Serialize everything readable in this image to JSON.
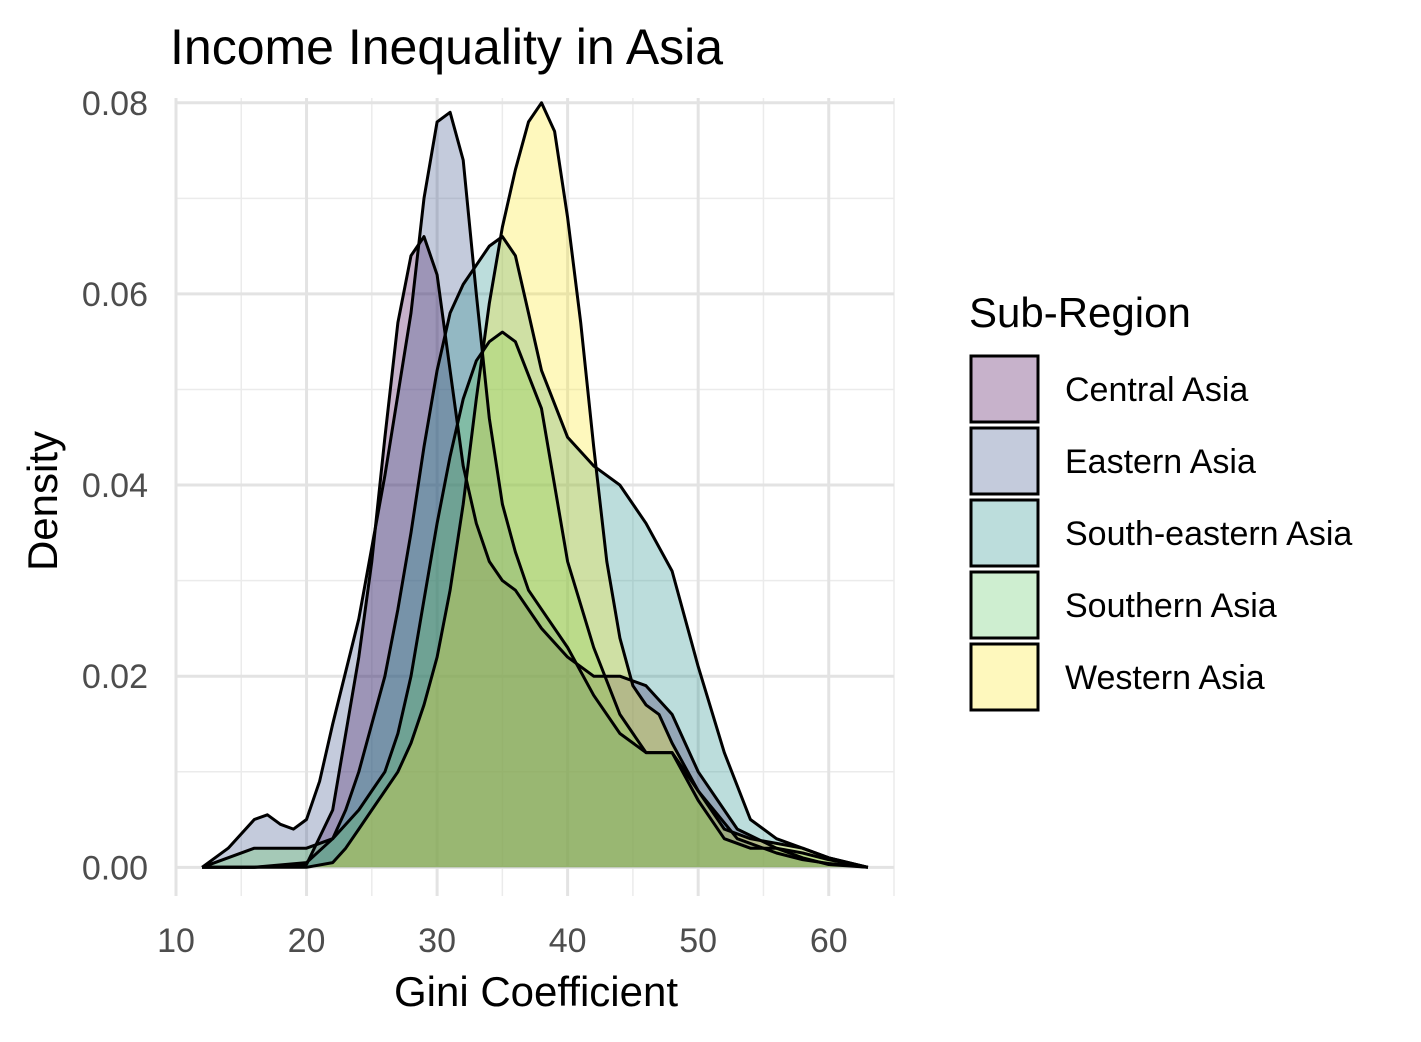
{
  "chart_data": {
    "type": "area",
    "title": "Income Inequality in Asia",
    "xlabel": "Gini Coefficient",
    "ylabel": "Density",
    "xlim": [
      10,
      65
    ],
    "ylim": [
      -0.003,
      0.0805
    ],
    "xticks": [
      10,
      20,
      30,
      40,
      50,
      60
    ],
    "yticks": [
      0.0,
      0.02,
      0.04,
      0.06,
      0.08
    ],
    "xtick_labels": [
      "10",
      "20",
      "30",
      "40",
      "50",
      "60"
    ],
    "ytick_labels": [
      "0.00",
      "0.02",
      "0.04",
      "0.06",
      "0.08"
    ],
    "grid": true,
    "legend": {
      "title": "Sub-Region",
      "position": "right"
    },
    "series": [
      {
        "name": "Central Asia",
        "color": "#440154",
        "x": [
          12,
          16,
          20,
          22,
          24,
          25,
          26,
          27,
          28,
          29,
          30,
          31,
          32,
          33,
          34,
          35,
          36,
          38,
          40,
          42,
          44,
          46,
          48,
          50,
          53,
          56,
          58,
          60,
          63
        ],
        "y": [
          0.0,
          0.0,
          0.0003,
          0.006,
          0.022,
          0.032,
          0.045,
          0.057,
          0.064,
          0.066,
          0.062,
          0.052,
          0.042,
          0.036,
          0.032,
          0.03,
          0.029,
          0.025,
          0.022,
          0.02,
          0.02,
          0.019,
          0.016,
          0.01,
          0.004,
          0.002,
          0.001,
          0.0003,
          0.0
        ]
      },
      {
        "name": "Eastern Asia",
        "color": "#3B528B",
        "x": [
          12,
          14,
          16,
          17,
          18,
          19,
          20,
          21,
          22,
          24,
          26,
          28,
          29,
          30,
          31,
          32,
          33,
          34,
          35,
          36,
          37,
          38,
          40,
          42,
          44,
          46,
          48,
          50,
          53,
          56,
          58,
          60,
          63
        ],
        "y": [
          0.0,
          0.002,
          0.005,
          0.0055,
          0.0045,
          0.004,
          0.005,
          0.009,
          0.015,
          0.026,
          0.041,
          0.058,
          0.07,
          0.078,
          0.079,
          0.074,
          0.06,
          0.047,
          0.038,
          0.033,
          0.029,
          0.027,
          0.023,
          0.018,
          0.014,
          0.012,
          0.012,
          0.008,
          0.003,
          0.0015,
          0.0008,
          0.0004,
          0.0
        ]
      },
      {
        "name": "South-eastern Asia",
        "color": "#21908C",
        "x": [
          12,
          16,
          20,
          22,
          23,
          24,
          25,
          26,
          27,
          28,
          29,
          30,
          31,
          32,
          33,
          34,
          35,
          36,
          37,
          38,
          40,
          42,
          44,
          46,
          48,
          50,
          52,
          54,
          56,
          58,
          60,
          63
        ],
        "y": [
          0.0,
          0.0,
          0.0005,
          0.003,
          0.006,
          0.01,
          0.015,
          0.02,
          0.027,
          0.035,
          0.044,
          0.052,
          0.058,
          0.061,
          0.063,
          0.065,
          0.066,
          0.064,
          0.058,
          0.052,
          0.045,
          0.042,
          0.04,
          0.036,
          0.031,
          0.021,
          0.012,
          0.005,
          0.003,
          0.002,
          0.001,
          0.0
        ]
      },
      {
        "name": "Southern Asia",
        "color": "#5DC863",
        "x": [
          12,
          16,
          20,
          22,
          24,
          25,
          26,
          27,
          28,
          29,
          30,
          31,
          32,
          33,
          34,
          35,
          36,
          38,
          40,
          42,
          44,
          46,
          48,
          50,
          52,
          54,
          56,
          58,
          60,
          63
        ],
        "y": [
          0.0,
          0.002,
          0.002,
          0.003,
          0.006,
          0.008,
          0.01,
          0.014,
          0.02,
          0.028,
          0.036,
          0.043,
          0.049,
          0.053,
          0.055,
          0.056,
          0.055,
          0.048,
          0.032,
          0.023,
          0.016,
          0.012,
          0.012,
          0.007,
          0.003,
          0.002,
          0.002,
          0.0015,
          0.0008,
          0.0
        ]
      },
      {
        "name": "Western Asia",
        "color": "#FDE725",
        "x": [
          12,
          16,
          20,
          22,
          23,
          24,
          25,
          26,
          27,
          28,
          29,
          30,
          31,
          32,
          33,
          34,
          35,
          36,
          37,
          38,
          39,
          40,
          41,
          42,
          43,
          44,
          45,
          46,
          47,
          48,
          50,
          52,
          54,
          56,
          58,
          60,
          63
        ],
        "y": [
          0.0,
          0.0,
          0.0,
          0.0005,
          0.002,
          0.004,
          0.006,
          0.008,
          0.01,
          0.013,
          0.017,
          0.022,
          0.029,
          0.038,
          0.049,
          0.059,
          0.067,
          0.073,
          0.078,
          0.08,
          0.077,
          0.068,
          0.057,
          0.044,
          0.032,
          0.024,
          0.019,
          0.017,
          0.016,
          0.013,
          0.008,
          0.004,
          0.003,
          0.0025,
          0.002,
          0.001,
          0.0
        ]
      }
    ]
  }
}
